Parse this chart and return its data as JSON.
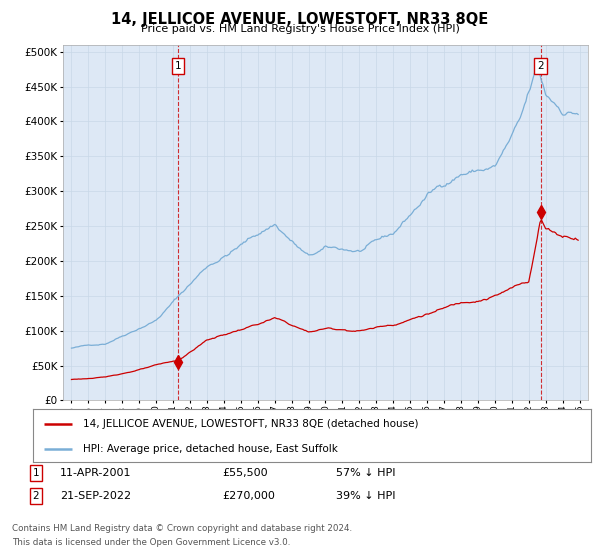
{
  "title": "14, JELLICOE AVENUE, LOWESTOFT, NR33 8QE",
  "subtitle": "Price paid vs. HM Land Registry's House Price Index (HPI)",
  "price_color": "#cc0000",
  "hpi_color": "#7aaed6",
  "background_color": "#ffffff",
  "plot_bg_color": "#dde8f5",
  "grid_color": "#c8d8e8",
  "sale1_price": 55500,
  "sale1_year": 2001.29,
  "sale2_price": 270000,
  "sale2_year": 2022.71,
  "legend_line1": "14, JELLICOE AVENUE, LOWESTOFT, NR33 8QE (detached house)",
  "legend_line2": "HPI: Average price, detached house, East Suffolk",
  "footnote_line1": "Contains HM Land Registry data © Crown copyright and database right 2024.",
  "footnote_line2": "This data is licensed under the Open Government Licence v3.0.",
  "annotation1_date": "11-APR-2001",
  "annotation1_price": "£55,500",
  "annotation1_hpi": "57% ↓ HPI",
  "annotation2_date": "21-SEP-2022",
  "annotation2_price": "£270,000",
  "annotation2_hpi": "39% ↓ HPI",
  "ylim": [
    0,
    510000
  ],
  "yticks": [
    0,
    50000,
    100000,
    150000,
    200000,
    250000,
    300000,
    350000,
    400000,
    450000,
    500000
  ],
  "xlim_left": 1994.5,
  "xlim_right": 2025.5
}
